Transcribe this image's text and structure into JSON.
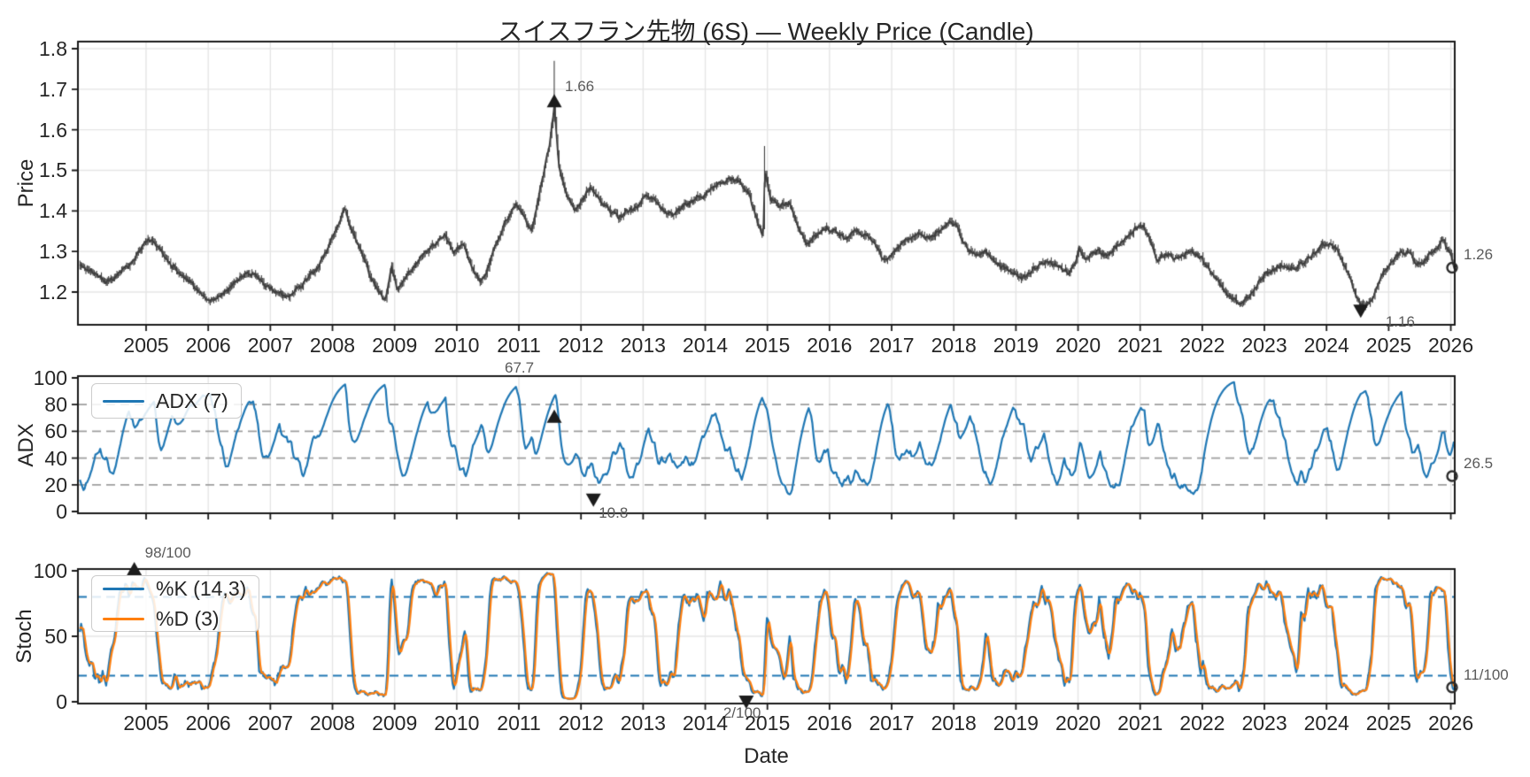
{
  "figure": {
    "title": "スイスフラン先物 (6S) — Weekly Price (Candle)",
    "xlabel": "Date"
  },
  "colors": {
    "candle": "#3d3d3d",
    "blue": "#1f77b4",
    "orange": "#ff7f0e",
    "grid": "#e5e5e5",
    "dashed_gray": "#9e9e9e",
    "spine": "#1a1a1a",
    "marker": "#1c1c1c",
    "tick_text": "#262626",
    "annotation_text": "#5a5a5a"
  },
  "chart_data": [
    {
      "id": "price",
      "type": "candlestick",
      "title": "スイスフラン先物 (6S) — Weekly Price (Candle)",
      "ylabel": "Price",
      "ylim": [
        1.12,
        1.82
      ],
      "yticks": [
        "1.2",
        "1.3",
        "1.4",
        "1.5",
        "1.6",
        "1.7",
        "1.8"
      ],
      "x_range": [
        2003.92,
        2026.05
      ],
      "grid": true,
      "anchors": [
        [
          2003.92,
          1.265
        ],
        [
          2004.15,
          1.25
        ],
        [
          2004.35,
          1.225
        ],
        [
          2004.55,
          1.24
        ],
        [
          2004.75,
          1.27
        ],
        [
          2004.95,
          1.315
        ],
        [
          2005.08,
          1.33
        ],
        [
          2005.2,
          1.31
        ],
        [
          2005.4,
          1.27
        ],
        [
          2005.55,
          1.245
        ],
        [
          2005.75,
          1.22
        ],
        [
          2005.95,
          1.19
        ],
        [
          2006.1,
          1.18
        ],
        [
          2006.3,
          1.2
        ],
        [
          2006.5,
          1.235
        ],
        [
          2006.65,
          1.25
        ],
        [
          2006.8,
          1.24
        ],
        [
          2006.95,
          1.215
        ],
        [
          2007.1,
          1.2
        ],
        [
          2007.3,
          1.19
        ],
        [
          2007.5,
          1.215
        ],
        [
          2007.7,
          1.25
        ],
        [
          2007.9,
          1.3
        ],
        [
          2008.05,
          1.345
        ],
        [
          2008.18,
          1.41
        ],
        [
          2008.3,
          1.36
        ],
        [
          2008.45,
          1.3
        ],
        [
          2008.6,
          1.24
        ],
        [
          2008.75,
          1.2
        ],
        [
          2008.85,
          1.18
        ],
        [
          2008.95,
          1.26
        ],
        [
          2009.05,
          1.205
        ],
        [
          2009.2,
          1.24
        ],
        [
          2009.35,
          1.27
        ],
        [
          2009.5,
          1.295
        ],
        [
          2009.65,
          1.32
        ],
        [
          2009.8,
          1.345
        ],
        [
          2009.95,
          1.3
        ],
        [
          2010.1,
          1.315
        ],
        [
          2010.25,
          1.26
        ],
        [
          2010.38,
          1.22
        ],
        [
          2010.5,
          1.26
        ],
        [
          2010.65,
          1.33
        ],
        [
          2010.8,
          1.38
        ],
        [
          2010.95,
          1.42
        ],
        [
          2011.1,
          1.38
        ],
        [
          2011.2,
          1.35
        ],
        [
          2011.35,
          1.46
        ],
        [
          2011.48,
          1.55
        ],
        [
          2011.57,
          1.66
        ],
        [
          2011.65,
          1.5
        ],
        [
          2011.78,
          1.43
        ],
        [
          2011.9,
          1.4
        ],
        [
          2012.0,
          1.42
        ],
        [
          2012.15,
          1.46
        ],
        [
          2012.3,
          1.43
        ],
        [
          2012.45,
          1.4
        ],
        [
          2012.6,
          1.385
        ],
        [
          2012.75,
          1.4
        ],
        [
          2012.9,
          1.415
        ],
        [
          2013.05,
          1.44
        ],
        [
          2013.2,
          1.425
        ],
        [
          2013.35,
          1.4
        ],
        [
          2013.5,
          1.39
        ],
        [
          2013.65,
          1.415
        ],
        [
          2013.8,
          1.42
        ],
        [
          2013.95,
          1.435
        ],
        [
          2014.1,
          1.455
        ],
        [
          2014.25,
          1.465
        ],
        [
          2014.4,
          1.48
        ],
        [
          2014.55,
          1.47
        ],
        [
          2014.7,
          1.44
        ],
        [
          2014.85,
          1.37
        ],
        [
          2014.93,
          1.34
        ],
        [
          2014.96,
          1.5
        ],
        [
          2015.05,
          1.43
        ],
        [
          2015.2,
          1.41
        ],
        [
          2015.35,
          1.42
        ],
        [
          2015.5,
          1.36
        ],
        [
          2015.65,
          1.32
        ],
        [
          2015.8,
          1.34
        ],
        [
          2015.95,
          1.36
        ],
        [
          2016.1,
          1.345
        ],
        [
          2016.25,
          1.33
        ],
        [
          2016.4,
          1.355
        ],
        [
          2016.55,
          1.345
        ],
        [
          2016.7,
          1.33
        ],
        [
          2016.85,
          1.285
        ],
        [
          2017.0,
          1.29
        ],
        [
          2017.15,
          1.32
        ],
        [
          2017.3,
          1.335
        ],
        [
          2017.45,
          1.34
        ],
        [
          2017.6,
          1.33
        ],
        [
          2017.75,
          1.35
        ],
        [
          2017.9,
          1.37
        ],
        [
          2018.05,
          1.36
        ],
        [
          2018.2,
          1.31
        ],
        [
          2018.35,
          1.29
        ],
        [
          2018.5,
          1.3
        ],
        [
          2018.65,
          1.275
        ],
        [
          2018.8,
          1.26
        ],
        [
          2018.95,
          1.245
        ],
        [
          2019.1,
          1.235
        ],
        [
          2019.25,
          1.255
        ],
        [
          2019.4,
          1.27
        ],
        [
          2019.55,
          1.275
        ],
        [
          2019.7,
          1.26
        ],
        [
          2019.85,
          1.25
        ],
        [
          2019.97,
          1.28
        ],
        [
          2020.02,
          1.31
        ],
        [
          2020.15,
          1.28
        ],
        [
          2020.3,
          1.3
        ],
        [
          2020.45,
          1.29
        ],
        [
          2020.6,
          1.31
        ],
        [
          2020.75,
          1.335
        ],
        [
          2020.9,
          1.355
        ],
        [
          2021.05,
          1.365
        ],
        [
          2021.15,
          1.33
        ],
        [
          2021.27,
          1.28
        ],
        [
          2021.4,
          1.295
        ],
        [
          2021.55,
          1.285
        ],
        [
          2021.7,
          1.29
        ],
        [
          2021.85,
          1.3
        ],
        [
          2022.0,
          1.28
        ],
        [
          2022.15,
          1.25
        ],
        [
          2022.3,
          1.22
        ],
        [
          2022.45,
          1.19
        ],
        [
          2022.6,
          1.17
        ],
        [
          2022.75,
          1.19
        ],
        [
          2022.9,
          1.22
        ],
        [
          2023.0,
          1.24
        ],
        [
          2023.15,
          1.26
        ],
        [
          2023.3,
          1.27
        ],
        [
          2023.45,
          1.26
        ],
        [
          2023.6,
          1.27
        ],
        [
          2023.75,
          1.29
        ],
        [
          2023.9,
          1.31
        ],
        [
          2024.05,
          1.325
        ],
        [
          2024.2,
          1.295
        ],
        [
          2024.35,
          1.245
        ],
        [
          2024.5,
          1.18
        ],
        [
          2024.62,
          1.16
        ],
        [
          2024.75,
          1.19
        ],
        [
          2024.88,
          1.24
        ],
        [
          2025.0,
          1.27
        ],
        [
          2025.15,
          1.29
        ],
        [
          2025.3,
          1.3
        ],
        [
          2025.45,
          1.265
        ],
        [
          2025.6,
          1.28
        ],
        [
          2025.75,
          1.31
        ],
        [
          2025.88,
          1.325
        ],
        [
          2026.0,
          1.29
        ],
        [
          2026.05,
          1.26
        ]
      ],
      "key_points": {
        "peak": {
          "x": 2011.57,
          "close": 1.66,
          "wick_high": 1.77
        },
        "spike_2015": {
          "x": 2014.96,
          "wick_high": 1.56
        },
        "trough": {
          "x": 2024.62,
          "wick_low": 1.155,
          "close": 1.165
        },
        "last": {
          "x": 2026.05,
          "close": 1.26
        }
      },
      "annotations": [
        {
          "text": "1.66",
          "x": 2011.57,
          "y": 1.66,
          "marker": "up"
        },
        {
          "text": "1.16",
          "x": 2024.55,
          "y": 1.16,
          "marker": "down"
        }
      ],
      "last_label": {
        "text": "1.26",
        "y": 1.26
      }
    },
    {
      "id": "adx",
      "type": "line",
      "legend": [
        "ADX (7)"
      ],
      "indicator": {
        "name": "ADX",
        "period": 7
      },
      "ylabel": "ADX",
      "ylim": [
        -1.5,
        101.5
      ],
      "yticks": [
        "0",
        "20",
        "40",
        "60",
        "80",
        "100"
      ],
      "dashed_levels": [
        20,
        40,
        60,
        80
      ],
      "dashed_color": "#9e9e9e",
      "value_range_typical": [
        10.8,
        67.7
      ],
      "annotations": [
        {
          "text": "67.7",
          "x": 2011.57,
          "y": 67.7,
          "marker": "up"
        },
        {
          "text": "10.8",
          "x": 2012.2,
          "y": 10.8,
          "marker": "down"
        }
      ],
      "last_label": {
        "text": "26.5",
        "y": 26.5
      }
    },
    {
      "id": "stoch",
      "type": "line",
      "legend": [
        "%K (14,3)",
        "%D (3)"
      ],
      "indicator": {
        "name": "Stochastic",
        "k_period": 14,
        "k_smooth": 3,
        "d_period": 3
      },
      "ylabel": "Stoch",
      "xlabel": "Date",
      "ylim": [
        -1.5,
        101.5
      ],
      "yticks": [
        "0",
        "50",
        "100"
      ],
      "dashed_levels": [
        20,
        80
      ],
      "dashed_color": "#1f77b4",
      "annotations": [
        {
          "text": "98/100",
          "x": 2004.81,
          "y": 98,
          "marker": "up"
        },
        {
          "text": "2/100",
          "x": 2014.66,
          "y": 2,
          "marker": "down"
        }
      ],
      "last_label": {
        "text": "11/100",
        "y": 11
      }
    }
  ],
  "xticks": [
    2005,
    2006,
    2007,
    2008,
    2009,
    2010,
    2011,
    2012,
    2013,
    2014,
    2015,
    2016,
    2017,
    2018,
    2019,
    2020,
    2021,
    2022,
    2023,
    2024,
    2025,
    2026
  ]
}
